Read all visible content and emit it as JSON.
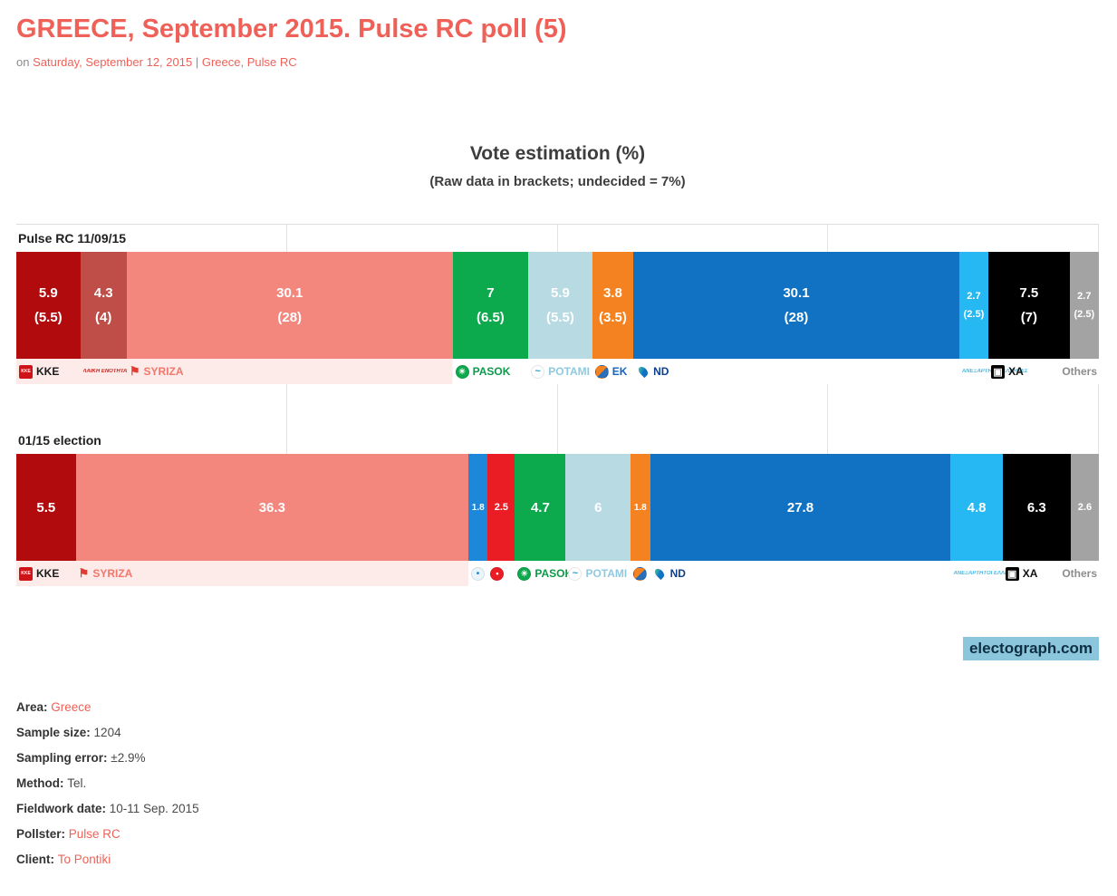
{
  "page": {
    "title": "GREECE, September 2015. Pulse RC poll (5)",
    "meta": {
      "prefix": "on",
      "date": "Saturday, September 12, 2015",
      "separator": "|",
      "tag_greece": "Greece",
      "tag_comma": ", ",
      "tag_pollster": "Pulse RC"
    }
  },
  "chart": {
    "title": "Vote estimation (%)",
    "subtitle": "(Raw data in brackets; undecided = 7%)",
    "watermark": "electograph.com",
    "colors": {
      "grid": "#e3e3e3",
      "label_tint": "#fcebe8",
      "accent": "#ef6158"
    }
  },
  "parties": {
    "kke": {
      "label": "KKE",
      "label_color": "#1a1a1a",
      "color": "#b20b0e",
      "logo": {
        "shape": "square",
        "bg": "#cf1419",
        "fg": "#ffffff",
        "glyph": "KKE",
        "fs": 5
      }
    },
    "lae": {
      "label": "",
      "label_color": "#c02a23",
      "color": "#bf4e49",
      "logo": {
        "shape": "text",
        "bg": "",
        "fg": "#c02a23",
        "glyph": "ΛΑΪΚΗ ΕΝΟΤΗΤΑ",
        "fs": 6
      }
    },
    "syriza": {
      "label": "SYRIZA",
      "label_color": "#f4766c",
      "color": "#f4877d",
      "logo": {
        "shape": "glyph",
        "bg": "",
        "fg": "#e23b33",
        "glyph": "⚑",
        "fs": 13
      }
    },
    "pasok": {
      "label": "PASOK",
      "label_color": "#0a9a49",
      "color": "#0caa4d",
      "logo": {
        "shape": "circle",
        "bg": "#0caa4d",
        "fg": "#ffffff",
        "glyph": "☀",
        "fs": 9
      }
    },
    "potami": {
      "label": "POTAMI",
      "label_color": "#8ecadf",
      "color": "#b8dae3",
      "logo": {
        "shape": "circle",
        "bg": "#ffffff",
        "fg": "#1e9cd7",
        "glyph": "~",
        "fs": 11
      }
    },
    "ek": {
      "label": "EK",
      "label_color": "#1565c0",
      "color": "#f58220",
      "logo": {
        "shape": "duo-circle",
        "bg": "#f58220",
        "fg": "#2a6fb8",
        "glyph": "",
        "fs": 6
      }
    },
    "nd": {
      "label": "ND",
      "label_color": "#0d3f8f",
      "color": "#1172c4",
      "logo": {
        "shape": "flame",
        "bg": "#1172c4",
        "fg": "#35b5aa",
        "glyph": "",
        "fs": 6
      }
    },
    "anel": {
      "label": "",
      "label_color": "#49b8e5",
      "color": "#25b8f2",
      "logo": {
        "shape": "text",
        "bg": "",
        "fg": "#49b8e5",
        "glyph": "ΑΝΕΞΑΡΤΗΤΟΙ ΕΛΛΗΝΕΣ",
        "fs": 6
      }
    },
    "xa": {
      "label": "XA",
      "label_color": "#111111",
      "color": "#000000",
      "logo": {
        "shape": "square",
        "bg": "#000000",
        "fg": "#ffffff",
        "glyph": "▣",
        "fs": 11
      }
    },
    "teleia": {
      "label": "",
      "label_color": "#1d87da",
      "color": "#1d87da",
      "logo": {
        "shape": "circle",
        "bg": "#eaf6fc",
        "fg": "#1d87da",
        "glyph": "•",
        "fs": 10
      }
    },
    "kidiso": {
      "label": "",
      "label_color": "#ea1d25",
      "color": "#ea1d25",
      "logo": {
        "shape": "circle",
        "bg": "#ea1d25",
        "fg": "#ffffff",
        "glyph": "•",
        "fs": 9
      }
    },
    "others": {
      "label": "Others",
      "label_color": "#8c8c8c",
      "color": "#a3a3a3",
      "logo": null
    }
  },
  "chart_data": [
    {
      "type": "bar",
      "orientation": "horizontal",
      "stacked": true,
      "title": "Pulse RC 11/09/15",
      "unit": "%",
      "xlim": [
        0,
        100
      ],
      "grid": true,
      "label_tint_until_party": "syriza",
      "segments": [
        {
          "party": "kke",
          "value": 5.9,
          "raw": 5.5
        },
        {
          "party": "lae",
          "value": 4.3,
          "raw": 4
        },
        {
          "party": "syriza",
          "value": 30.1,
          "raw": 28
        },
        {
          "party": "pasok",
          "value": 7,
          "raw": 6.5
        },
        {
          "party": "potami",
          "value": 5.9,
          "raw": 5.5
        },
        {
          "party": "ek",
          "value": 3.8,
          "raw": 3.5
        },
        {
          "party": "nd",
          "value": 30.1,
          "raw": 28
        },
        {
          "party": "anel",
          "value": 2.7,
          "raw": 2.5
        },
        {
          "party": "xa",
          "value": 7.5,
          "raw": 7
        },
        {
          "party": "others",
          "value": 2.7,
          "raw": 2.5
        }
      ]
    },
    {
      "type": "bar",
      "orientation": "horizontal",
      "stacked": true,
      "title": "01/15 election",
      "unit": "%",
      "xlim": [
        0,
        100
      ],
      "grid": true,
      "label_tint_until_party": "syriza",
      "segments": [
        {
          "party": "kke",
          "value": 5.5
        },
        {
          "party": "syriza",
          "value": 36.3
        },
        {
          "party": "teleia",
          "value": 1.8
        },
        {
          "party": "kidiso",
          "value": 2.5
        },
        {
          "party": "pasok",
          "value": 4.7
        },
        {
          "party": "potami",
          "value": 6
        },
        {
          "party": "ek",
          "value": 1.8,
          "show_label": false
        },
        {
          "party": "nd",
          "value": 27.8
        },
        {
          "party": "anel",
          "value": 4.8
        },
        {
          "party": "xa",
          "value": 6.3
        },
        {
          "party": "others",
          "value": 2.6
        }
      ]
    }
  ],
  "details": [
    {
      "key": "area",
      "label": "Area:",
      "value": "Greece",
      "link": true
    },
    {
      "key": "sample-size",
      "label": "Sample size:",
      "value": "1204",
      "link": false
    },
    {
      "key": "sampling-error",
      "label": "Sampling error:",
      "value": "±2.9%",
      "link": false
    },
    {
      "key": "method",
      "label": "Method:",
      "value": "Tel.",
      "link": false
    },
    {
      "key": "fieldwork-date",
      "label": "Fieldwork date:",
      "value": "10-11 Sep. 2015",
      "link": false
    },
    {
      "key": "pollster",
      "label": "Pollster:",
      "value": "Pulse RC",
      "link": true
    },
    {
      "key": "client",
      "label": "Client:",
      "value": "To Pontiki",
      "link": true
    }
  ]
}
